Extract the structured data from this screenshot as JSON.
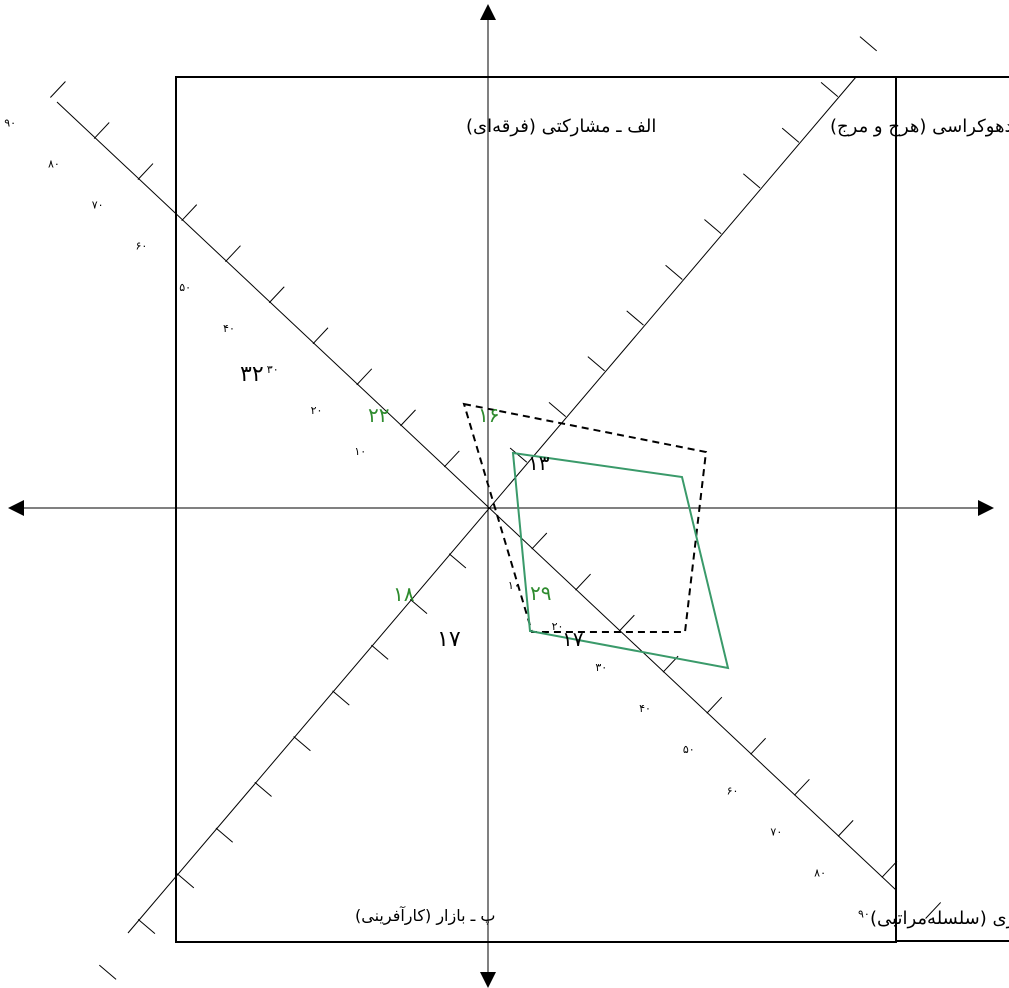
{
  "colors": {
    "green": "#3a9a6a",
    "score_green": "#2e8b2e",
    "black": "#000000"
  },
  "quadrants": {
    "a": "الف ـ مشارکتی (فرقه‌ای)",
    "b": "ب ـ ادهوکراسی (هرج و مرج)",
    "p": "پ ـ بازار  (کارآفرینی)",
    "t": "ت ـ دیوانسالاری (سلسله‌مراتبی)"
  },
  "axis_a_ticks": [
    "۱۰",
    "۲۰",
    "۳۰",
    "۴۰",
    "۵۰",
    "۶۰",
    "۷۰",
    "۸۰",
    "۹۰"
  ],
  "axis_t_ticks": [
    "۱۰",
    "۲۰",
    "۳۰",
    "۴۰",
    "۵۰",
    "۶۰",
    "۷۰",
    "۸۰",
    "۹۰"
  ],
  "scores": {
    "a_black": "۳۲",
    "a_green": "۲۲",
    "b_black": "۱۳",
    "b_green": "۱۶",
    "p_black": "۱۷",
    "p_green": "۱۸",
    "t_black": "۱۷",
    "t_green": "۲۹"
  }
}
